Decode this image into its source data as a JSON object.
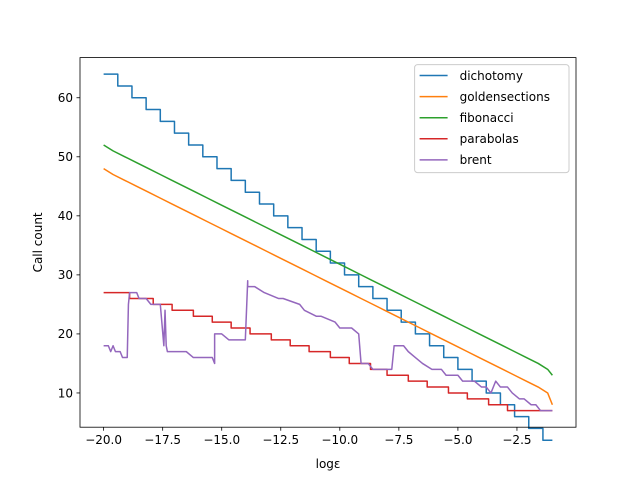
{
  "chart_data": {
    "type": "line",
    "xlabel": "logε",
    "ylabel": "Call count",
    "xlim": [
      -21.0,
      0.0
    ],
    "ylim": [
      4.2,
      66.8
    ],
    "x_ticks": [
      -20.0,
      -17.5,
      -15.0,
      -12.5,
      -10.0,
      -7.5,
      -5.0,
      -2.5
    ],
    "x_tick_labels": [
      "−20.0",
      "−17.5",
      "−15.0",
      "−12.5",
      "−10.0",
      "−7.5",
      "−5.0",
      "−2.5"
    ],
    "y_ticks": [
      10,
      20,
      30,
      40,
      50,
      60
    ],
    "y_tick_labels": [
      "10",
      "20",
      "30",
      "40",
      "50",
      "60"
    ],
    "grid": false,
    "legend_position": "top-right",
    "series": [
      {
        "name": "dichotomy",
        "color": "#1f77b4",
        "x": [
          -20.0,
          -19.4,
          -19.4,
          -18.8,
          -18.8,
          -18.2,
          -18.2,
          -17.6,
          -17.6,
          -17.0,
          -17.0,
          -16.4,
          -16.4,
          -15.8,
          -15.8,
          -15.2,
          -15.2,
          -14.6,
          -14.6,
          -14.0,
          -14.0,
          -13.4,
          -13.4,
          -12.8,
          -12.8,
          -12.2,
          -12.2,
          -11.6,
          -11.6,
          -11.0,
          -11.0,
          -10.4,
          -10.4,
          -9.8,
          -9.8,
          -9.2,
          -9.2,
          -8.6,
          -8.6,
          -8.0,
          -8.0,
          -7.4,
          -7.4,
          -6.8,
          -6.8,
          -6.2,
          -6.2,
          -5.6,
          -5.6,
          -5.0,
          -5.0,
          -4.4,
          -4.4,
          -3.8,
          -3.8,
          -3.2,
          -3.2,
          -2.6,
          -2.6,
          -2.0,
          -2.0,
          -1.4,
          -1.4,
          -1.0
        ],
        "y": [
          64,
          64,
          62,
          62,
          60,
          60,
          58,
          58,
          56,
          56,
          54,
          54,
          52,
          52,
          50,
          50,
          48,
          48,
          46,
          46,
          44,
          44,
          42,
          42,
          40,
          40,
          38,
          38,
          36,
          36,
          34,
          34,
          32,
          32,
          30,
          30,
          28,
          28,
          26,
          26,
          24,
          24,
          22,
          22,
          20,
          20,
          18,
          18,
          16,
          16,
          14,
          14,
          12,
          12,
          10,
          10,
          8,
          8,
          6,
          6,
          4,
          4,
          2,
          2
        ]
      },
      {
        "name": "goldensections",
        "color": "#ff7f0e",
        "x": [
          -20.0,
          -19.6,
          -19.6,
          -19.1,
          -19.1,
          -18.6,
          -18.6,
          -18.1,
          -18.1,
          -17.6,
          -17.6,
          -17.1,
          -17.1,
          -16.6,
          -16.6,
          -16.1,
          -16.1,
          -15.6,
          -15.6,
          -15.1,
          -15.1,
          -14.6,
          -14.6,
          -14.1,
          -14.1,
          -13.6,
          -13.6,
          -13.1,
          -13.1,
          -12.6,
          -12.6,
          -12.1,
          -12.1,
          -11.6,
          -11.6,
          -11.1,
          -11.1,
          -10.6,
          -10.6,
          -10.1,
          -10.1,
          -9.6,
          -9.6,
          -9.1,
          -9.1,
          -8.6,
          -8.6,
          -8.1,
          -8.1,
          -7.6,
          -7.6,
          -7.1,
          -7.1,
          -6.6,
          -6.6,
          -6.1,
          -6.1,
          -5.6,
          -5.6,
          -5.1,
          -5.1,
          -4.6,
          -4.6,
          -4.1,
          -4.1,
          -3.6,
          -3.6,
          -3.1,
          -3.1,
          -2.6,
          -2.6,
          -2.1,
          -2.1,
          -1.6,
          -1.6,
          -1.2,
          -1.2,
          -1.0
        ],
        "y": [
          48,
          47,
          47,
          46,
          46,
          45,
          45,
          44,
          44,
          43,
          43,
          42,
          42,
          41,
          41,
          40,
          40,
          39,
          39,
          38,
          38,
          37,
          37,
          36,
          36,
          35,
          35,
          34,
          34,
          33,
          33,
          32,
          32,
          31,
          31,
          30,
          30,
          29,
          29,
          28,
          28,
          27,
          27,
          26,
          26,
          25,
          25,
          24,
          24,
          23,
          23,
          22,
          22,
          21,
          21,
          20,
          20,
          19,
          19,
          18,
          18,
          17,
          17,
          16,
          16,
          15,
          15,
          14,
          14,
          13,
          13,
          12,
          12,
          11,
          11,
          10,
          10,
          8
        ]
      },
      {
        "name": "fibonacci",
        "color": "#2ca02c",
        "x": [
          -20.0,
          -19.6,
          -19.6,
          -19.1,
          -19.1,
          -18.6,
          -18.6,
          -18.1,
          -18.1,
          -17.6,
          -17.6,
          -17.1,
          -17.1,
          -16.6,
          -16.6,
          -16.1,
          -16.1,
          -15.6,
          -15.6,
          -15.1,
          -15.1,
          -14.6,
          -14.6,
          -14.1,
          -14.1,
          -13.6,
          -13.6,
          -13.1,
          -13.1,
          -12.6,
          -12.6,
          -12.1,
          -12.1,
          -11.6,
          -11.6,
          -11.1,
          -11.1,
          -10.6,
          -10.6,
          -10.1,
          -10.1,
          -9.6,
          -9.6,
          -9.1,
          -9.1,
          -8.6,
          -8.6,
          -8.1,
          -8.1,
          -7.6,
          -7.6,
          -7.1,
          -7.1,
          -6.6,
          -6.6,
          -6.1,
          -6.1,
          -5.6,
          -5.6,
          -5.1,
          -5.1,
          -4.6,
          -4.6,
          -4.1,
          -4.1,
          -3.6,
          -3.6,
          -3.1,
          -3.1,
          -2.6,
          -2.6,
          -2.1,
          -2.1,
          -1.6,
          -1.6,
          -1.2,
          -1.2,
          -1.0
        ],
        "y": [
          52,
          51,
          51,
          50,
          50,
          49,
          49,
          48,
          48,
          47,
          47,
          46,
          46,
          45,
          45,
          44,
          44,
          43,
          43,
          42,
          42,
          41,
          41,
          40,
          40,
          39,
          39,
          38,
          38,
          37,
          37,
          36,
          36,
          35,
          35,
          34,
          34,
          33,
          33,
          32,
          32,
          31,
          31,
          30,
          30,
          29,
          29,
          28,
          28,
          27,
          27,
          26,
          26,
          25,
          25,
          24,
          24,
          23,
          23,
          22,
          22,
          21,
          21,
          20,
          20,
          19,
          19,
          18,
          18,
          17,
          17,
          16,
          16,
          15,
          15,
          14,
          14,
          13
        ]
      },
      {
        "name": "parabolas",
        "color": "#d62728",
        "x": [
          -20.0,
          -18.9,
          -18.9,
          -17.9,
          -17.9,
          -17.1,
          -17.1,
          -16.2,
          -16.2,
          -15.4,
          -15.4,
          -14.6,
          -14.6,
          -13.8,
          -13.8,
          -12.9,
          -12.9,
          -12.1,
          -12.1,
          -11.3,
          -11.3,
          -10.4,
          -10.4,
          -9.6,
          -9.6,
          -8.7,
          -8.7,
          -8.0,
          -8.0,
          -7.1,
          -7.1,
          -6.3,
          -6.3,
          -5.4,
          -5.4,
          -4.6,
          -4.6,
          -3.7,
          -3.7,
          -2.9,
          -2.9,
          -1.0
        ],
        "y": [
          27,
          27,
          26,
          26,
          25,
          25,
          24,
          24,
          23,
          23,
          22,
          22,
          21,
          21,
          20,
          20,
          19,
          19,
          18,
          18,
          17,
          17,
          16,
          16,
          15,
          15,
          14,
          14,
          13,
          13,
          12,
          12,
          11,
          11,
          10,
          10,
          9,
          9,
          8,
          8,
          7,
          7
        ]
      },
      {
        "name": "brent",
        "color": "#9467bd",
        "x": [
          -20.0,
          -19.8,
          -19.7,
          -19.6,
          -19.5,
          -19.3,
          -19.2,
          -19.0,
          -18.95,
          -18.9,
          -18.8,
          -18.6,
          -18.5,
          -18.2,
          -18.0,
          -17.9,
          -17.6,
          -17.45,
          -17.4,
          -17.35,
          -17.3,
          -17.0,
          -16.5,
          -16.2,
          -16.0,
          -15.4,
          -15.3,
          -15.3,
          -15.0,
          -14.7,
          -14.5,
          -14.2,
          -14.0,
          -13.9,
          -13.9,
          -13.8,
          -13.6,
          -13.2,
          -12.6,
          -12.4,
          -11.7,
          -11.5,
          -11.0,
          -10.8,
          -10.2,
          -10.0,
          -9.5,
          -9.2,
          -9.1,
          -8.8,
          -8.6,
          -8.2,
          -7.8,
          -7.7,
          -7.3,
          -7.1,
          -6.8,
          -6.5,
          -6.1,
          -5.7,
          -5.5,
          -5.0,
          -4.8,
          -4.3,
          -4.0,
          -3.8,
          -3.6,
          -3.4,
          -3.2,
          -2.9,
          -2.7,
          -2.4,
          -2.2,
          -1.9,
          -1.7,
          -1.5,
          -1.3,
          -1.1,
          -1.0
        ],
        "y": [
          18,
          18,
          17,
          18,
          17,
          17,
          16,
          16,
          25,
          27,
          27,
          27,
          26,
          26,
          25,
          25,
          25,
          18,
          24,
          18,
          17,
          17,
          17,
          16,
          16,
          16,
          15,
          20,
          20,
          19,
          19,
          19,
          19,
          29,
          28,
          28,
          28,
          27,
          26,
          26,
          25,
          24,
          23,
          23,
          22,
          21,
          21,
          20,
          15,
          15,
          14,
          14,
          14,
          18,
          18,
          17,
          16,
          15,
          14,
          14,
          13,
          13,
          12,
          12,
          11,
          11,
          10,
          12,
          11,
          11,
          10,
          9,
          9,
          8,
          8,
          7,
          7,
          7,
          7
        ]
      }
    ]
  }
}
